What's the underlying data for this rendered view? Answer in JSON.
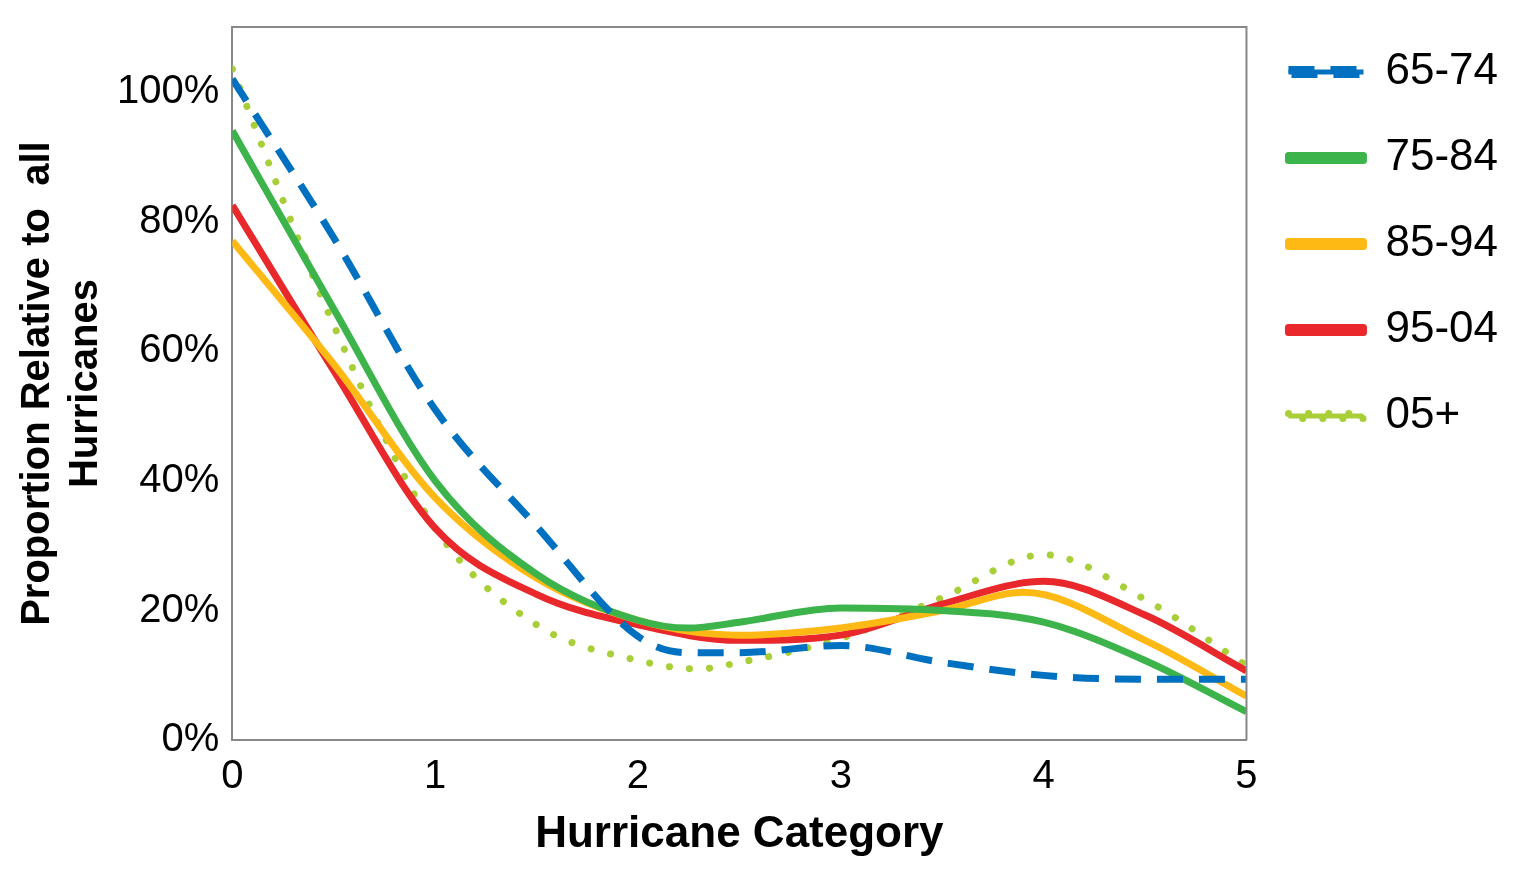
{
  "chart_data": {
    "type": "line",
    "xlabel": "Hurricane Category",
    "ylabel": "Proportion Relative to  all\nHurricanes",
    "xlim": [
      0,
      5
    ],
    "xticks": [
      0,
      1,
      2,
      3,
      4,
      5
    ],
    "ylim": [
      0,
      110
    ],
    "yticks": [
      {
        "value": 0,
        "label": "0%"
      },
      {
        "value": 20,
        "label": "20%"
      },
      {
        "value": 40,
        "label": "40%"
      },
      {
        "value": 60,
        "label": "60%"
      },
      {
        "value": 80,
        "label": "80%"
      },
      {
        "value": 100,
        "label": "100%"
      }
    ],
    "grid": false,
    "legend": "right",
    "marker": "none",
    "series": [
      {
        "name": "65-74",
        "color": "#0070c0",
        "line_style": "dashed",
        "x": [
          0,
          0.5,
          1,
          1.5,
          2,
          2.25,
          2.5,
          3,
          3.5,
          4,
          4.5,
          5
        ],
        "values": [
          102,
          77.5,
          51,
          33,
          16,
          13.5,
          13.5,
          14.6,
          12,
          10,
          9.4,
          9.4
        ]
      },
      {
        "name": "75-84",
        "color": "#3cb44b",
        "line_style": "solid",
        "x": [
          0,
          0.5,
          1,
          1.5,
          2,
          2.25,
          2.5,
          3,
          3.5,
          4,
          4.5,
          5
        ],
        "values": [
          94,
          66.5,
          40,
          25.6,
          18.5,
          17.3,
          18.2,
          20.4,
          20,
          18.2,
          12.3,
          4.4
        ]
      },
      {
        "name": "85-94",
        "color": "#ffb914",
        "line_style": "solid",
        "x": [
          0,
          0.5,
          1,
          1.5,
          2,
          2.5,
          3,
          3.5,
          3.9,
          4.5,
          5
        ],
        "values": [
          77,
          58,
          37.4,
          25,
          18.5,
          16.2,
          17.3,
          20,
          22.8,
          15.4,
          6.8
        ]
      },
      {
        "name": "95-04",
        "color": "#e8282b",
        "line_style": "solid",
        "x": [
          0,
          0.5,
          1,
          1.5,
          2,
          2.5,
          3,
          3.5,
          4,
          4.5,
          5
        ],
        "values": [
          82.5,
          57,
          32.7,
          22.5,
          17.8,
          15.4,
          16.2,
          21,
          24.5,
          19.3,
          10.7
        ]
      },
      {
        "name": "05+",
        "color": "#a8cf38",
        "line_style": "dotted",
        "x": [
          0,
          0.5,
          1,
          1.5,
          2,
          2.3,
          2.5,
          3,
          3.5,
          4,
          4.5,
          5
        ],
        "values": [
          103.5,
          64,
          32.7,
          17.8,
          12.3,
          11,
          12,
          15.7,
          22,
          28.6,
          21.7,
          11.5
        ]
      }
    ]
  }
}
